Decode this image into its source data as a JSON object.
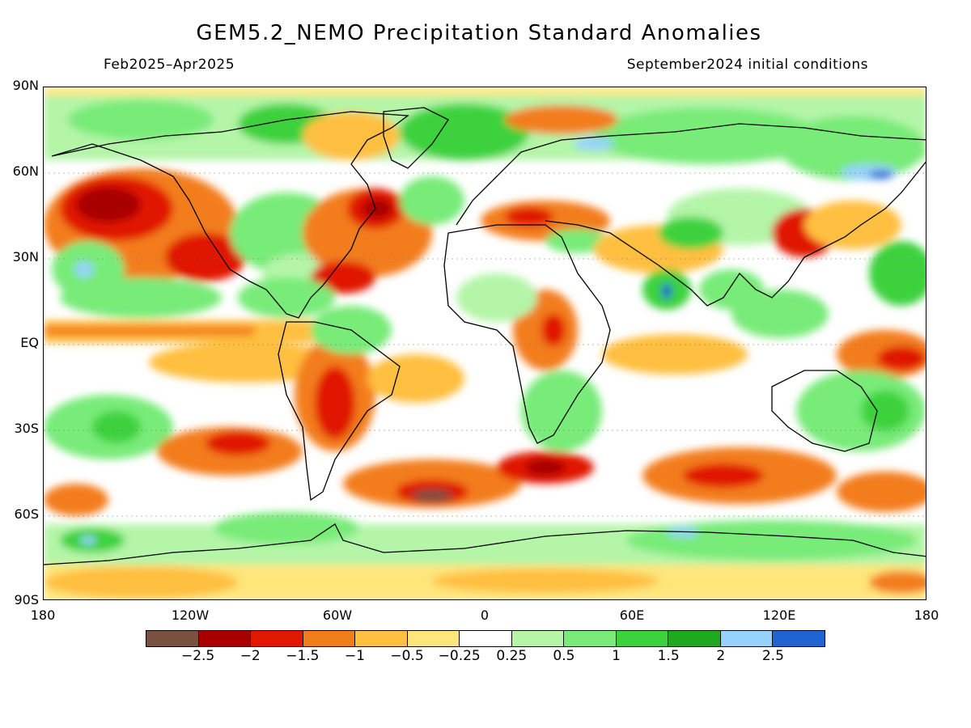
{
  "title": "GEM5.2_NEMO Precipitation Standard Anomalies",
  "period": "Feb2025–Apr2025",
  "initial_conditions": "September2024 initial conditions",
  "lat_labels": [
    "90N",
    "60N",
    "30N",
    "EQ",
    "30S",
    "60S",
    "90S"
  ],
  "lon_labels": [
    "180",
    "120W",
    "60W",
    "0",
    "60E",
    "120E",
    "180"
  ],
  "colorbar": {
    "colors": [
      "#7a5040",
      "#a80000",
      "#e01800",
      "#f37d1a",
      "#ffbf40",
      "#ffe57a",
      "#ffffff",
      "#b4f5a8",
      "#78eb78",
      "#3cd23c",
      "#1eaa1e",
      "#96d2fa",
      "#1e64d2"
    ],
    "labels": [
      "−2.5",
      "−2",
      "−1.5",
      "−1",
      "−0.5",
      "−0.25",
      "0.25",
      "0.5",
      "1",
      "1.5",
      "2",
      "2.5"
    ]
  }
}
